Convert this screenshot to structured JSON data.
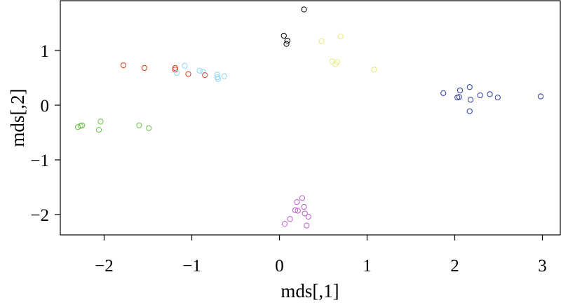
{
  "chart_data": {
    "type": "scatter",
    "title": "",
    "xlabel": "mds[,1]",
    "ylabel": "mds[,2]",
    "xlim": [
      -2.5,
      3.2
    ],
    "ylim": [
      -2.4,
      1.85
    ],
    "xticks": [
      {
        "value": -2,
        "label": "−2"
      },
      {
        "value": -1,
        "label": "−1"
      },
      {
        "value": 0,
        "label": "0"
      },
      {
        "value": 1,
        "label": "1"
      },
      {
        "value": 2,
        "label": "2"
      },
      {
        "value": 3,
        "label": "3"
      }
    ],
    "yticks": [
      {
        "value": -2,
        "label": "−2"
      },
      {
        "value": -1,
        "label": "−1"
      },
      {
        "value": 0,
        "label": "0"
      },
      {
        "value": 1,
        "label": "1"
      }
    ],
    "grid": false,
    "legend": "none",
    "marker": "open-circle",
    "series": [
      {
        "color": "#000000",
        "x": [
          0.28,
          0.05,
          0.08,
          0.09
        ],
        "y": [
          1.75,
          1.27,
          1.12,
          1.18
        ]
      },
      {
        "color": "#e8e87a",
        "x": [
          0.7,
          0.48,
          0.6,
          0.66,
          0.64,
          1.08
        ],
        "y": [
          1.26,
          1.17,
          0.8,
          0.79,
          0.75,
          0.65
        ]
      },
      {
        "color": "#d9401a",
        "x": [
          -1.78,
          -1.54,
          -1.19,
          -1.19,
          -1.04,
          -0.85
        ],
        "y": [
          0.73,
          0.68,
          0.68,
          0.65,
          0.57,
          0.55
        ]
      },
      {
        "color": "#8fd4f0",
        "x": [
          -1.17,
          -1.08,
          -0.91,
          -0.87,
          -0.71,
          -0.71,
          -0.7,
          -0.63
        ],
        "y": [
          0.59,
          0.72,
          0.63,
          0.61,
          0.56,
          0.51,
          0.48,
          0.53
        ]
      },
      {
        "color": "#6cc04a",
        "x": [
          -2.3,
          -2.27,
          -2.25,
          -2.04,
          -2.06,
          -1.6,
          -1.49
        ],
        "y": [
          -0.4,
          -0.38,
          -0.37,
          -0.3,
          -0.45,
          -0.37,
          -0.42
        ]
      },
      {
        "color": "#2b3a9c",
        "x": [
          1.87,
          2.03,
          2.05,
          2.06,
          2.17,
          2.18,
          2.17,
          2.29,
          2.4,
          2.49,
          2.98
        ],
        "y": [
          0.22,
          0.14,
          0.15,
          0.27,
          0.33,
          0.1,
          -0.11,
          0.18,
          0.2,
          0.14,
          0.16
        ]
      },
      {
        "color": "#b85cc4",
        "x": [
          0.26,
          0.2,
          0.28,
          0.18,
          0.21,
          0.29,
          0.33,
          0.12,
          0.06,
          0.31
        ],
        "y": [
          -1.7,
          -1.77,
          -1.86,
          -1.92,
          -1.93,
          -1.98,
          -2.04,
          -2.08,
          -2.17,
          -2.2
        ]
      }
    ]
  }
}
